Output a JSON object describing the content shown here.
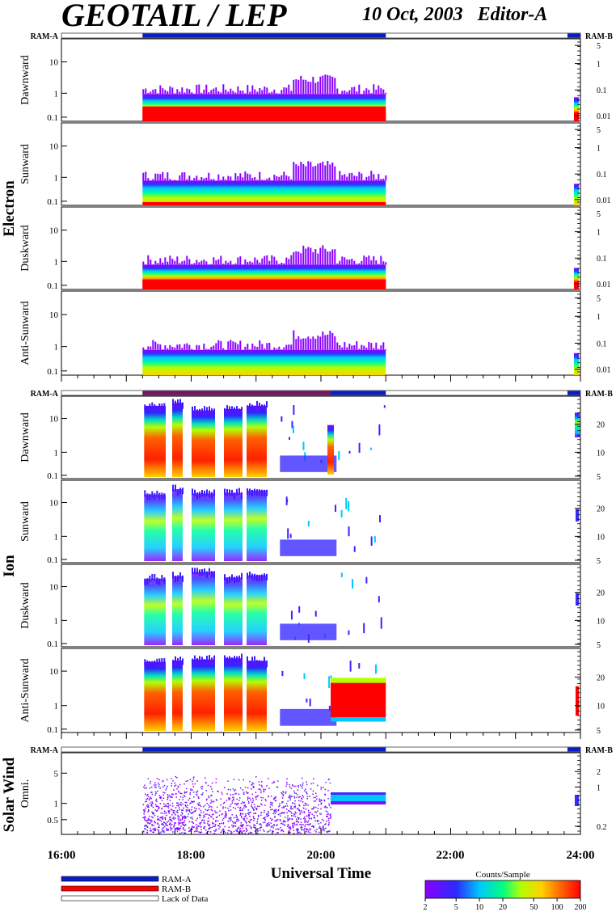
{
  "header": {
    "title": "GEOTAIL / LEP",
    "date_editor": "10 Oct, 2003   Editor-A"
  },
  "ram": {
    "a": "RAM-A",
    "b": "RAM-B"
  },
  "groups": {
    "electron": "Electron",
    "ion": "Ion",
    "solar_wind": "Solar Wind"
  },
  "panel_labels": {
    "e_dawn": "Dawnward",
    "e_sun": "Sunward",
    "e_dusk": "Duskward",
    "e_anti": "Anti-Sunward",
    "i_dawn": "Dawnward",
    "i_sun": "Sunward",
    "i_dusk": "Duskward",
    "i_anti": "Anti-Sunward",
    "sw_omni": "Omni."
  },
  "xaxis": {
    "title": "Universal Time",
    "ticks": [
      "16:00",
      "18:00",
      "20:00",
      "22:00",
      "24:00"
    ]
  },
  "legend": {
    "ram_a": "RAM-A",
    "ram_b": "RAM-B",
    "lack": "Lack of Data"
  },
  "colorbar": {
    "title": "Counts/Sample",
    "ticks": [
      "2",
      "5",
      "10",
      "20",
      "50",
      "100",
      "200"
    ],
    "colors": [
      "#7a00ff",
      "#2a2aff",
      "#00c8ff",
      "#00ff80",
      "#b4ff00",
      "#ffd000",
      "#ff6000",
      "#ff0000"
    ]
  },
  "chart_data": {
    "type": "heatmap",
    "x_range_hours": [
      16,
      24
    ],
    "data_start_hour": 17.25,
    "data_end_hour": 21.0,
    "late_data_hours": [
      23.9,
      24.0
    ],
    "ram_bar": [
      {
        "mode": "RAM-A",
        "from": 17.25,
        "to": 21.0
      },
      {
        "mode": "RAM-A",
        "from": 23.8,
        "to": 24.0
      }
    ],
    "electron_ylabels_left": [
      "10",
      "1",
      "0.1"
    ],
    "electron_ylabels_right": [
      "5",
      "1",
      "0.1",
      "0.01"
    ],
    "ion_ylabels_left": [
      "10",
      "1",
      "0.1"
    ],
    "ion_ylabels_right": [
      "20",
      "10",
      "5"
    ],
    "sw_ylabels_left": [
      "5",
      "1",
      "0.5"
    ],
    "sw_ylabels_right": [
      "2",
      "1",
      "0.2"
    ]
  }
}
